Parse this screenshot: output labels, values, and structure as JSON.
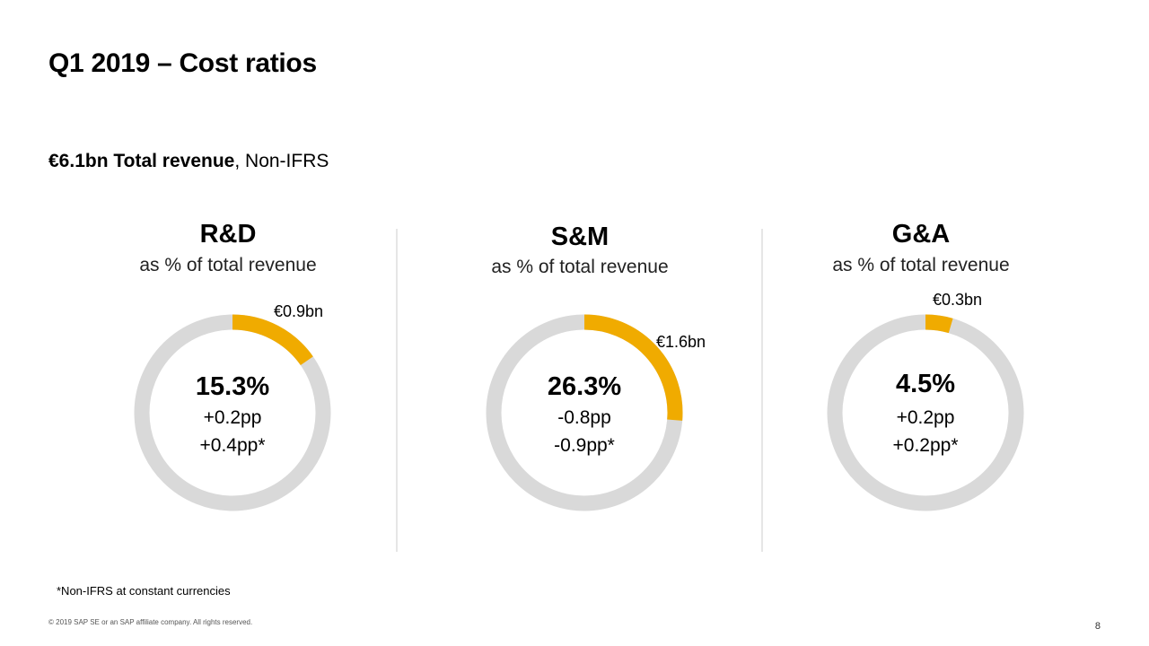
{
  "slide": {
    "title": "Q1 2019 – Cost ratios",
    "subtitle_bold": "€6.1bn Total revenue",
    "subtitle_rest": ", Non-IFRS",
    "footnote": "*Non-IFRS at constant currencies",
    "copyright": "© 2019 SAP SE or an SAP affiliate company. All rights reserved.",
    "page_number": "8"
  },
  "colors": {
    "accent": "#f0ab00",
    "track": "#d9d9d9"
  },
  "chart_data": [
    {
      "type": "pie",
      "title": "R&D",
      "subtitle": "as % of total revenue",
      "value_percent": 15.3,
      "ratio_label": "15.3%",
      "amount_label": "€0.9bn",
      "change_label": "+0.2pp",
      "change_cc_label": "+0.4pp*"
    },
    {
      "type": "pie",
      "title": "S&M",
      "subtitle": "as % of total revenue",
      "value_percent": 26.3,
      "ratio_label": "26.3%",
      "amount_label": "€1.6bn",
      "change_label": "-0.8pp",
      "change_cc_label": "-0.9pp*"
    },
    {
      "type": "pie",
      "title": "G&A",
      "subtitle": "as % of total revenue",
      "value_percent": 4.5,
      "ratio_label": "4.5%",
      "amount_label": "€0.3bn",
      "change_label": "+0.2pp",
      "change_cc_label": "+0.2pp*"
    }
  ]
}
